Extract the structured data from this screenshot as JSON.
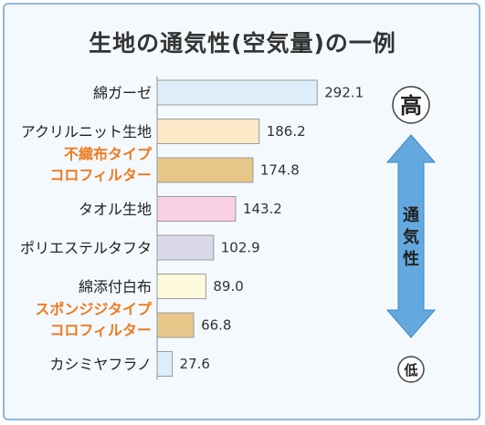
{
  "chart_data": {
    "type": "bar",
    "orientation": "horizontal",
    "title": "生地の通気性(空気量)の一例",
    "categories": [
      [
        "綿ガーゼ"
      ],
      [
        "アクリルニット生地"
      ],
      [
        "不織布タイプ",
        "コロフィルター"
      ],
      [
        "タオル生地"
      ],
      [
        "ポリエステルタフタ"
      ],
      [
        "綿添付白布"
      ],
      [
        "スポンジジタイプ",
        "コロフィルター"
      ],
      [
        "カシミヤフラノ"
      ]
    ],
    "values": [
      292.1,
      186.2,
      174.8,
      143.2,
      102.9,
      89.0,
      66.8,
      27.6
    ],
    "value_labels": [
      "292.1",
      "186.2",
      "174.8",
      "143.2",
      "102.9",
      "89.0",
      "66.8",
      "27.6"
    ],
    "bar_colors": [
      "#ddeefa",
      "#fde8c8",
      "#e7c68a",
      "#f9cfe2",
      "#dcd8ec",
      "#fcf9dc",
      "#e7c68a",
      "#ddeefa"
    ],
    "label_colors": [
      "#222222",
      "#222222",
      "#ee7a1e",
      "#222222",
      "#222222",
      "#222222",
      "#ee7a1e",
      "#222222"
    ],
    "xlim": [
      0,
      300
    ],
    "grid": false,
    "scale": {
      "high": "高",
      "low": "低",
      "label_chars": [
        "通",
        "気",
        "性"
      ],
      "arrow_color": "#63a9e0"
    }
  }
}
